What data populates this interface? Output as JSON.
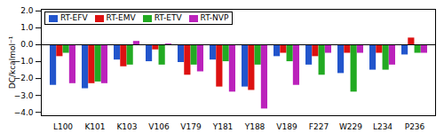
{
  "chart_data": {
    "type": "bar",
    "categories": [
      "L100",
      "K101",
      "K103",
      "V106",
      "V179",
      "Y181",
      "Y188",
      "V189",
      "F227",
      "W229",
      "L234",
      "P236"
    ],
    "series": [
      {
        "name": "RT-EFV",
        "color": "#2255cc",
        "values": [
          -2.4,
          -2.6,
          -0.9,
          -1.0,
          -1.05,
          -0.9,
          -2.5,
          -0.7,
          -1.2,
          -1.7,
          -1.5,
          -0.6
        ]
      },
      {
        "name": "RT-EMV",
        "color": "#dd1111",
        "values": [
          -0.7,
          -2.3,
          -1.3,
          -0.3,
          -1.8,
          -2.5,
          -2.7,
          -0.5,
          -0.7,
          -0.5,
          -0.5,
          0.4
        ]
      },
      {
        "name": "RT-ETV",
        "color": "#22aa22",
        "values": [
          -0.5,
          -2.2,
          -1.2,
          -1.2,
          -1.2,
          -1.0,
          -1.2,
          -1.0,
          -1.8,
          -2.8,
          -1.5,
          -0.5
        ]
      },
      {
        "name": "RT-NVP",
        "color": "#bb22bb",
        "values": [
          -2.3,
          -2.3,
          0.2,
          0.05,
          -1.6,
          -2.8,
          -3.8,
          -2.4,
          -0.5,
          -0.5,
          -1.2,
          -0.5
        ]
      }
    ],
    "ylabel": "DC/kcalmol⁻¹",
    "ylim": [
      -4.2,
      2.1
    ],
    "yticks": [
      -4,
      -3,
      -2,
      -1,
      0,
      1,
      2
    ],
    "legend": "upper left",
    "grid": false
  }
}
